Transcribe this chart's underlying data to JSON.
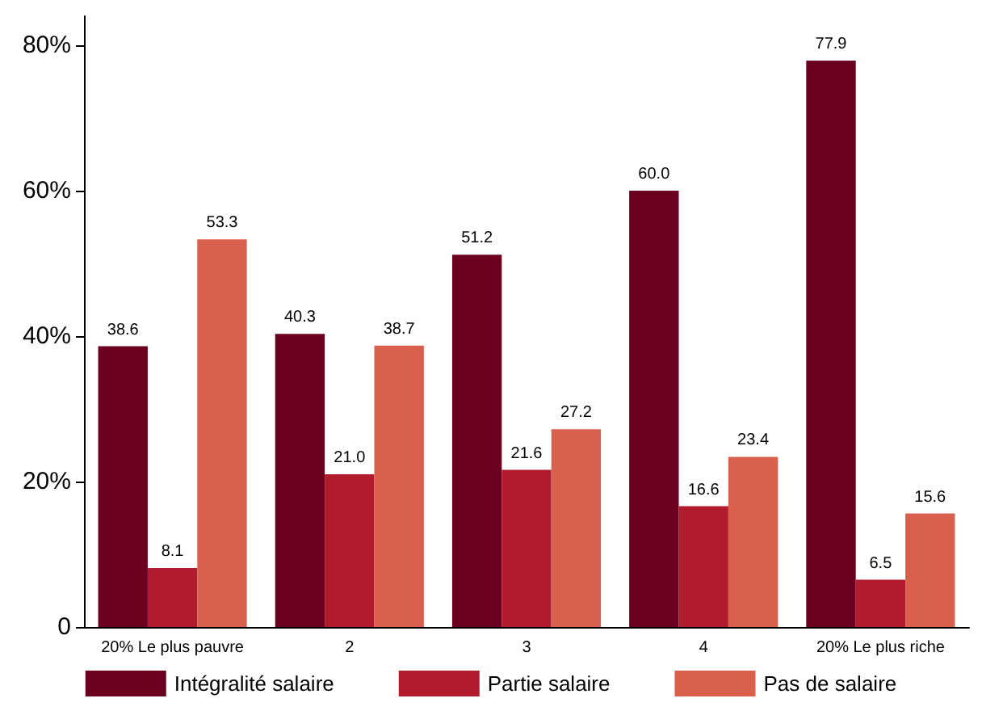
{
  "chart_data": {
    "type": "bar",
    "categories": [
      "20% Le plus pauvre",
      "2",
      "3",
      "4",
      "20% Le plus riche"
    ],
    "series": [
      {
        "name": "Intégralité salaire",
        "color": "#6b0020",
        "values": [
          38.6,
          40.3,
          51.2,
          60.0,
          77.9
        ],
        "value_labels": [
          "38.6",
          "40.3",
          "51.2",
          "60.0",
          "77.9"
        ]
      },
      {
        "name": "Partie salaire",
        "color": "#b01c2e",
        "values": [
          8.1,
          21.0,
          21.6,
          16.6,
          6.5
        ],
        "value_labels": [
          "8.1",
          "21.0",
          "21.6",
          "16.6",
          "6.5"
        ]
      },
      {
        "name": "Pas de salaire",
        "color": "#d9604c",
        "values": [
          53.3,
          38.7,
          27.2,
          23.4,
          15.6
        ],
        "value_labels": [
          "53.3",
          "38.7",
          "27.2",
          "23.4",
          "15.6"
        ]
      }
    ],
    "ylim": [
      0,
      84
    ],
    "yticks": [
      {
        "value": 0,
        "label": "0"
      },
      {
        "value": 20,
        "label": "20%"
      },
      {
        "value": 40,
        "label": "40%"
      },
      {
        "value": 60,
        "label": "60%"
      },
      {
        "value": 80,
        "label": "80%"
      }
    ],
    "grid": false,
    "legend": "bottom"
  }
}
